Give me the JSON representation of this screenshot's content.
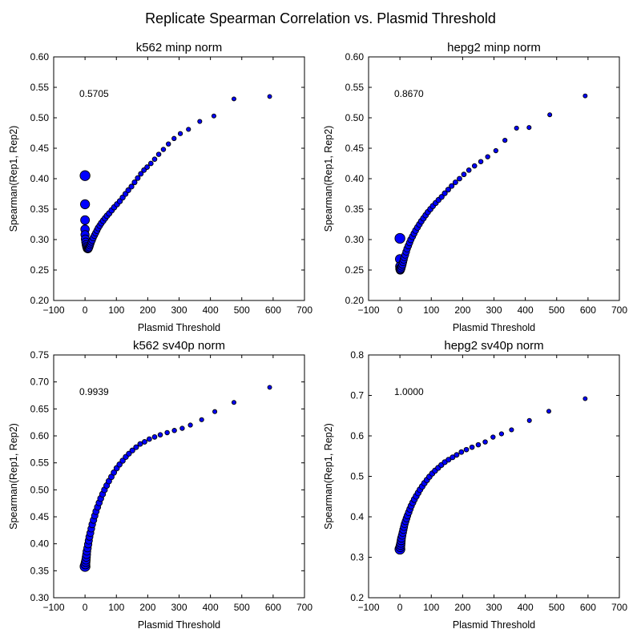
{
  "figure_title": "Replicate Spearman Correlation vs. Plasmid Threshold",
  "colors": {
    "marker_fill": "#0000ff",
    "marker_edge": "#000000",
    "axes": "#000000",
    "background": "#ffffff"
  },
  "chart_data": [
    {
      "type": "scatter",
      "title": "k562 minp norm",
      "xlabel": "Plasmid Threshold",
      "ylabel": "Spearman(Rep1, Rep2)",
      "xlim": [
        -100,
        700
      ],
      "ylim": [
        0.2,
        0.6
      ],
      "xticks": [
        "−100",
        "0",
        "100",
        "200",
        "300",
        "400",
        "500",
        "600",
        "700"
      ],
      "yticks": [
        "0.20",
        "0.25",
        "0.30",
        "0.35",
        "0.40",
        "0.45",
        "0.50",
        "0.55",
        "0.60"
      ],
      "annotation": "0.5705",
      "points": [
        [
          0,
          0.405
        ],
        [
          0,
          0.358
        ],
        [
          0,
          0.332
        ],
        [
          0,
          0.317
        ],
        [
          0,
          0.308
        ],
        [
          1,
          0.301
        ],
        [
          2,
          0.296
        ],
        [
          3,
          0.292
        ],
        [
          4,
          0.289
        ],
        [
          5,
          0.287
        ],
        [
          6,
          0.285
        ],
        [
          8,
          0.284
        ],
        [
          10,
          0.284
        ],
        [
          12,
          0.285
        ],
        [
          14,
          0.287
        ],
        [
          16,
          0.29
        ],
        [
          18,
          0.293
        ],
        [
          20,
          0.296
        ],
        [
          23,
          0.299
        ],
        [
          26,
          0.303
        ],
        [
          30,
          0.307
        ],
        [
          34,
          0.311
        ],
        [
          38,
          0.315
        ],
        [
          42,
          0.319
        ],
        [
          47,
          0.323
        ],
        [
          52,
          0.327
        ],
        [
          58,
          0.331
        ],
        [
          64,
          0.335
        ],
        [
          70,
          0.339
        ],
        [
          77,
          0.343
        ],
        [
          85,
          0.348
        ],
        [
          93,
          0.353
        ],
        [
          102,
          0.358
        ],
        [
          111,
          0.363
        ],
        [
          120,
          0.369
        ],
        [
          129,
          0.375
        ],
        [
          138,
          0.381
        ],
        [
          148,
          0.387
        ],
        [
          158,
          0.394
        ],
        [
          168,
          0.401
        ],
        [
          178,
          0.408
        ],
        [
          188,
          0.414
        ],
        [
          198,
          0.419
        ],
        [
          210,
          0.425
        ],
        [
          222,
          0.432
        ],
        [
          235,
          0.44
        ],
        [
          250,
          0.448
        ],
        [
          266,
          0.457
        ],
        [
          284,
          0.466
        ],
        [
          304,
          0.474
        ],
        [
          330,
          0.481
        ],
        [
          366,
          0.494
        ],
        [
          411,
          0.503
        ],
        [
          475,
          0.531
        ],
        [
          589,
          0.535
        ]
      ]
    },
    {
      "type": "scatter",
      "title": "hepg2 minp norm",
      "xlabel": "Plasmid Threshold",
      "ylabel": "Spearman(Rep1, Rep2)",
      "xlim": [
        -100,
        700
      ],
      "ylim": [
        0.2,
        0.6
      ],
      "xticks": [
        "−100",
        "0",
        "100",
        "200",
        "300",
        "400",
        "500",
        "600",
        "700"
      ],
      "yticks": [
        "0.20",
        "0.25",
        "0.30",
        "0.35",
        "0.40",
        "0.45",
        "0.50",
        "0.55",
        "0.60"
      ],
      "annotation": "0.8670",
      "points": [
        [
          0,
          0.302
        ],
        [
          0,
          0.268
        ],
        [
          0,
          0.256
        ],
        [
          0,
          0.252
        ],
        [
          1,
          0.25
        ],
        [
          2,
          0.251
        ],
        [
          4,
          0.253
        ],
        [
          6,
          0.256
        ],
        [
          8,
          0.259
        ],
        [
          10,
          0.263
        ],
        [
          12,
          0.267
        ],
        [
          14,
          0.271
        ],
        [
          17,
          0.275
        ],
        [
          20,
          0.28
        ],
        [
          23,
          0.285
        ],
        [
          27,
          0.29
        ],
        [
          31,
          0.295
        ],
        [
          35,
          0.3
        ],
        [
          40,
          0.305
        ],
        [
          45,
          0.31
        ],
        [
          50,
          0.315
        ],
        [
          56,
          0.32
        ],
        [
          62,
          0.325
        ],
        [
          68,
          0.33
        ],
        [
          75,
          0.335
        ],
        [
          82,
          0.34
        ],
        [
          89,
          0.345
        ],
        [
          97,
          0.35
        ],
        [
          105,
          0.355
        ],
        [
          114,
          0.36
        ],
        [
          123,
          0.365
        ],
        [
          133,
          0.37
        ],
        [
          143,
          0.376
        ],
        [
          154,
          0.382
        ],
        [
          165,
          0.388
        ],
        [
          177,
          0.394
        ],
        [
          190,
          0.4
        ],
        [
          204,
          0.407
        ],
        [
          220,
          0.414
        ],
        [
          238,
          0.421
        ],
        [
          258,
          0.428
        ],
        [
          280,
          0.436
        ],
        [
          306,
          0.446
        ],
        [
          335,
          0.463
        ],
        [
          372,
          0.483
        ],
        [
          412,
          0.484
        ],
        [
          478,
          0.505
        ],
        [
          591,
          0.536
        ]
      ]
    },
    {
      "type": "scatter",
      "title": "k562 sv40p norm",
      "xlabel": "Plasmid Threshold",
      "ylabel": "Spearman(Rep1, Rep2)",
      "xlim": [
        -100,
        700
      ],
      "ylim": [
        0.3,
        0.75
      ],
      "xticks": [
        "−100",
        "0",
        "100",
        "200",
        "300",
        "400",
        "500",
        "600",
        "700"
      ],
      "yticks": [
        "0.30",
        "0.35",
        "0.40",
        "0.45",
        "0.50",
        "0.55",
        "0.60",
        "0.65",
        "0.70",
        "0.75"
      ],
      "annotation": "0.9939",
      "points": [
        [
          0,
          0.358
        ],
        [
          1,
          0.362
        ],
        [
          2,
          0.366
        ],
        [
          3,
          0.37
        ],
        [
          4,
          0.375
        ],
        [
          5,
          0.38
        ],
        [
          6,
          0.386
        ],
        [
          8,
          0.392
        ],
        [
          10,
          0.399
        ],
        [
          12,
          0.406
        ],
        [
          14,
          0.413
        ],
        [
          17,
          0.42
        ],
        [
          20,
          0.428
        ],
        [
          23,
          0.436
        ],
        [
          27,
          0.444
        ],
        [
          31,
          0.452
        ],
        [
          35,
          0.46
        ],
        [
          40,
          0.468
        ],
        [
          45,
          0.476
        ],
        [
          50,
          0.484
        ],
        [
          56,
          0.492
        ],
        [
          62,
          0.5
        ],
        [
          69,
          0.508
        ],
        [
          76,
          0.516
        ],
        [
          84,
          0.524
        ],
        [
          92,
          0.532
        ],
        [
          101,
          0.54
        ],
        [
          110,
          0.547
        ],
        [
          120,
          0.554
        ],
        [
          130,
          0.561
        ],
        [
          140,
          0.567
        ],
        [
          151,
          0.573
        ],
        [
          163,
          0.579
        ],
        [
          176,
          0.585
        ],
        [
          190,
          0.589
        ],
        [
          205,
          0.594
        ],
        [
          222,
          0.598
        ],
        [
          240,
          0.602
        ],
        [
          262,
          0.606
        ],
        [
          285,
          0.61
        ],
        [
          310,
          0.614
        ],
        [
          336,
          0.62
        ],
        [
          372,
          0.63
        ],
        [
          414,
          0.645
        ],
        [
          475,
          0.662
        ],
        [
          589,
          0.69
        ]
      ]
    },
    {
      "type": "scatter",
      "title": "hepg2 sv40p norm",
      "xlabel": "Plasmid Threshold",
      "ylabel": "Spearman(Rep1, Rep2)",
      "xlim": [
        -100,
        700
      ],
      "ylim": [
        0.2,
        0.8
      ],
      "xticks": [
        "−100",
        "0",
        "100",
        "200",
        "300",
        "400",
        "500",
        "600",
        "700"
      ],
      "yticks": [
        "0.2",
        "0.3",
        "0.4",
        "0.5",
        "0.6",
        "0.7",
        "0.8"
      ],
      "annotation": "1.0000",
      "points": [
        [
          0,
          0.32
        ],
        [
          1,
          0.325
        ],
        [
          2,
          0.33
        ],
        [
          3,
          0.335
        ],
        [
          4,
          0.341
        ],
        [
          5,
          0.347
        ],
        [
          7,
          0.354
        ],
        [
          9,
          0.361
        ],
        [
          11,
          0.368
        ],
        [
          13,
          0.375
        ],
        [
          15,
          0.382
        ],
        [
          18,
          0.389
        ],
        [
          21,
          0.396
        ],
        [
          24,
          0.403
        ],
        [
          28,
          0.411
        ],
        [
          32,
          0.419
        ],
        [
          36,
          0.427
        ],
        [
          41,
          0.435
        ],
        [
          46,
          0.443
        ],
        [
          52,
          0.451
        ],
        [
          58,
          0.459
        ],
        [
          64,
          0.467
        ],
        [
          71,
          0.475
        ],
        [
          78,
          0.483
        ],
        [
          86,
          0.491
        ],
        [
          94,
          0.499
        ],
        [
          103,
          0.507
        ],
        [
          112,
          0.514
        ],
        [
          122,
          0.521
        ],
        [
          132,
          0.528
        ],
        [
          143,
          0.535
        ],
        [
          155,
          0.541
        ],
        [
          168,
          0.547
        ],
        [
          181,
          0.553
        ],
        [
          196,
          0.56
        ],
        [
          212,
          0.566
        ],
        [
          230,
          0.572
        ],
        [
          250,
          0.578
        ],
        [
          272,
          0.585
        ],
        [
          297,
          0.597
        ],
        [
          324,
          0.605
        ],
        [
          356,
          0.615
        ],
        [
          413,
          0.638
        ],
        [
          475,
          0.661
        ],
        [
          591,
          0.692
        ]
      ]
    }
  ]
}
